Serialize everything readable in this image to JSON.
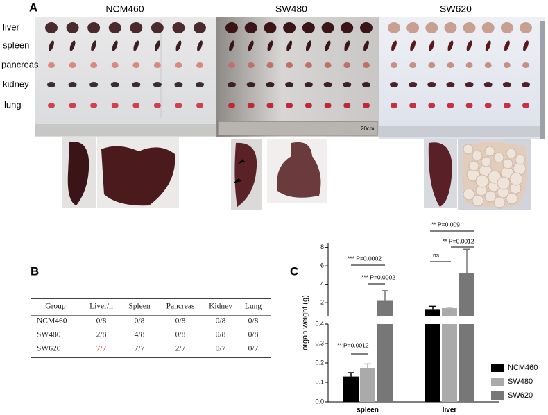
{
  "panel_a": {
    "label": "A",
    "groups": [
      "NCM460",
      "SW480",
      "SW620"
    ],
    "organs": [
      "liver",
      "spleen",
      "pancreas",
      "kidney",
      "lung"
    ],
    "ruler_label": "20cm"
  },
  "panel_b": {
    "label": "B",
    "columns": [
      "Group",
      "Liver/n",
      "Spleen",
      "Pancreas",
      "Kidney",
      "Lung"
    ],
    "rows": [
      [
        "NCM460",
        "0/8",
        "0/8",
        "0/8",
        "0/8",
        "0/8"
      ],
      [
        "SW480",
        "2/8",
        "4/8",
        "0/8",
        "0/8",
        "0/8"
      ],
      [
        "SW620",
        "7/7",
        "7/7",
        "2/7",
        "0/7",
        "0/7"
      ]
    ]
  },
  "chart_data": {
    "type": "bar",
    "label": "C",
    "ylabel": "organ weight (g)",
    "categories": [
      "spleen",
      "liver"
    ],
    "y_segments": [
      {
        "ylim": [
          0,
          0.4
        ],
        "yticks": [
          {
            "value": 0,
            "label": "0.0"
          },
          0.1,
          0.2,
          0.3,
          0.4
        ]
      },
      {
        "ylim": [
          0.5,
          8.5
        ],
        "yticks": [
          2,
          4,
          6,
          8
        ]
      }
    ],
    "series": [
      {
        "name": "NCM460",
        "color": "#000000",
        "values": [
          0.13,
          1.3
        ],
        "errors": [
          0.02,
          0.3
        ]
      },
      {
        "name": "SW480",
        "color": "#aaaaaa",
        "values": [
          0.175,
          1.4
        ],
        "errors": [
          0.02,
          0.1
        ]
      },
      {
        "name": "SW620",
        "color": "#777777",
        "values": [
          2.2,
          5.2
        ],
        "errors": [
          1.1,
          2.6
        ]
      }
    ],
    "annotations": [
      "** P=0.0012",
      "*** P=0.0002",
      "*** P=0.0002",
      "ns",
      "** P=0.009",
      "** P=0.0012"
    ]
  }
}
